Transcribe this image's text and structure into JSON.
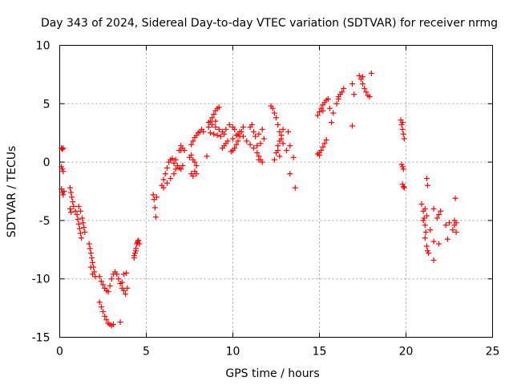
{
  "chart_data": {
    "type": "scatter",
    "title": "Day 343 of 2024, Sidereal Day-to-day VTEC variation (SDTVAR) for receiver nrmg",
    "xlabel": "GPS time / hours",
    "ylabel": "SDTVAR / TECUs",
    "xlim": [
      0,
      25
    ],
    "ylim": [
      -15,
      10
    ],
    "xticks": [
      0,
      5,
      10,
      15,
      20,
      25
    ],
    "yticks": [
      -15,
      -10,
      -5,
      0,
      5,
      10
    ],
    "grid": true,
    "marker": "+",
    "color": "#ff0000",
    "series": [
      {
        "name": "SDTVAR",
        "points": [
          [
            0.1,
            1.2
          ],
          [
            0.15,
            1.1
          ],
          [
            0.2,
            1.2
          ],
          [
            0.1,
            -0.4
          ],
          [
            0.15,
            -0.6
          ],
          [
            0.2,
            -0.8
          ],
          [
            0.1,
            -2.3
          ],
          [
            0.15,
            -2.6
          ],
          [
            0.2,
            -2.8
          ],
          [
            0.25,
            -2.5
          ],
          [
            0.6,
            -2.2
          ],
          [
            0.65,
            -2.6
          ],
          [
            0.7,
            -3.0
          ],
          [
            0.75,
            -3.4
          ],
          [
            0.6,
            -4.0
          ],
          [
            0.65,
            -4.3
          ],
          [
            0.8,
            -3.8
          ],
          [
            0.9,
            -4.2
          ],
          [
            1.0,
            -4.5
          ],
          [
            1.05,
            -4.9
          ],
          [
            1.1,
            -5.3
          ],
          [
            1.15,
            -5.7
          ],
          [
            1.2,
            -6.1
          ],
          [
            1.25,
            -6.5
          ],
          [
            1.1,
            -3.8
          ],
          [
            1.2,
            -4.2
          ],
          [
            1.3,
            -4.8
          ],
          [
            1.35,
            -5.2
          ],
          [
            1.4,
            -5.6
          ],
          [
            1.45,
            -6.0
          ],
          [
            1.7,
            -7.0
          ],
          [
            1.75,
            -7.4
          ],
          [
            1.8,
            -7.8
          ],
          [
            1.85,
            -8.2
          ],
          [
            1.9,
            -8.6
          ],
          [
            1.95,
            -9.0
          ],
          [
            2.0,
            -9.4
          ],
          [
            2.05,
            -9.8
          ],
          [
            1.8,
            -9.0
          ],
          [
            1.9,
            -9.6
          ],
          [
            2.3,
            -12.0
          ],
          [
            2.4,
            -12.4
          ],
          [
            2.5,
            -12.8
          ],
          [
            2.6,
            -13.2
          ],
          [
            2.7,
            -13.5
          ],
          [
            2.8,
            -13.8
          ],
          [
            2.9,
            -13.9
          ],
          [
            3.0,
            -14.0
          ],
          [
            3.1,
            -13.9
          ],
          [
            3.5,
            -13.7
          ],
          [
            2.3,
            -9.8
          ],
          [
            2.4,
            -10.2
          ],
          [
            2.5,
            -10.5
          ],
          [
            2.6,
            -10.8
          ],
          [
            2.7,
            -11.0
          ],
          [
            2.8,
            -11.1
          ],
          [
            2.9,
            -10.6
          ],
          [
            3.0,
            -10.0
          ],
          [
            3.1,
            -9.6
          ],
          [
            3.2,
            -9.4
          ],
          [
            3.3,
            -9.6
          ],
          [
            3.4,
            -10.0
          ],
          [
            3.5,
            -10.4
          ],
          [
            3.6,
            -10.8
          ],
          [
            3.7,
            -11.0
          ],
          [
            3.8,
            -11.3
          ],
          [
            3.9,
            -10.8
          ],
          [
            3.7,
            -9.6
          ],
          [
            3.85,
            -9.5
          ],
          [
            3.6,
            -10.3
          ],
          [
            4.3,
            -8.2
          ],
          [
            4.35,
            -7.8
          ],
          [
            4.4,
            -7.4
          ],
          [
            4.45,
            -7.0
          ],
          [
            4.5,
            -6.8
          ],
          [
            4.55,
            -6.7
          ],
          [
            4.6,
            -7.0
          ],
          [
            4.4,
            -7.6
          ],
          [
            4.5,
            -6.9
          ],
          [
            4.3,
            -8.0
          ],
          [
            5.4,
            -2.8
          ],
          [
            5.45,
            -3.2
          ],
          [
            5.5,
            -3.9
          ],
          [
            5.55,
            -4.7
          ],
          [
            5.6,
            -3.0
          ],
          [
            5.9,
            -2.0
          ],
          [
            6.0,
            -1.5
          ],
          [
            6.1,
            -1.0
          ],
          [
            6.2,
            -0.5
          ],
          [
            6.3,
            0.0
          ],
          [
            6.4,
            0.2
          ],
          [
            6.5,
            0.3
          ],
          [
            6.0,
            -2.2
          ],
          [
            6.2,
            -1.8
          ],
          [
            6.4,
            -1.4
          ],
          [
            6.6,
            -1.0
          ],
          [
            6.7,
            -0.6
          ],
          [
            6.8,
            -0.3
          ],
          [
            6.9,
            -0.5
          ],
          [
            7.0,
            -0.6
          ],
          [
            7.1,
            -0.3
          ],
          [
            6.6,
            -0.1
          ],
          [
            6.7,
            0.2
          ],
          [
            6.9,
            1.0
          ],
          [
            7.0,
            1.4
          ],
          [
            7.1,
            1.2
          ],
          [
            7.2,
            1.0
          ],
          [
            7.0,
            1.0
          ],
          [
            7.5,
            0.4
          ],
          [
            7.6,
            0.6
          ],
          [
            7.7,
            0.2
          ],
          [
            7.8,
            0.0
          ],
          [
            7.9,
            -0.3
          ],
          [
            7.6,
            -1.0
          ],
          [
            7.7,
            -1.2
          ],
          [
            7.8,
            -0.8
          ],
          [
            7.9,
            -1.0
          ],
          [
            7.6,
            1.5
          ],
          [
            7.7,
            1.8
          ],
          [
            7.8,
            2.1
          ],
          [
            7.9,
            2.3
          ],
          [
            8.0,
            2.5
          ],
          [
            8.1,
            2.6
          ],
          [
            8.2,
            2.8
          ],
          [
            8.3,
            2.6
          ],
          [
            8.5,
            0.5
          ],
          [
            8.6,
            3.0
          ],
          [
            8.7,
            3.5
          ],
          [
            8.8,
            3.8
          ],
          [
            8.9,
            4.1
          ],
          [
            9.0,
            4.4
          ],
          [
            9.1,
            4.6
          ],
          [
            9.2,
            4.7
          ],
          [
            9.0,
            3.5
          ],
          [
            8.6,
            3.4
          ],
          [
            8.8,
            3.2
          ],
          [
            9.0,
            3.0
          ],
          [
            9.2,
            2.8
          ],
          [
            9.4,
            2.6
          ],
          [
            9.6,
            2.8
          ],
          [
            9.8,
            3.2
          ],
          [
            8.7,
            2.5
          ],
          [
            8.9,
            2.4
          ],
          [
            9.1,
            2.3
          ],
          [
            9.3,
            2.2
          ],
          [
            9.5,
            2.4
          ],
          [
            9.5,
            1.4
          ],
          [
            9.6,
            1.6
          ],
          [
            9.7,
            1.8
          ],
          [
            9.4,
            1.2
          ],
          [
            9.9,
            0.9
          ],
          [
            10.0,
            1.0
          ],
          [
            10.1,
            1.2
          ],
          [
            10.2,
            1.5
          ],
          [
            10.3,
            1.8
          ],
          [
            10.4,
            2.2
          ],
          [
            10.5,
            2.6
          ],
          [
            10.6,
            3.0
          ],
          [
            10.0,
            2.0
          ],
          [
            10.2,
            2.3
          ],
          [
            10.4,
            2.6
          ],
          [
            10.0,
            3.0
          ],
          [
            10.1,
            2.8
          ],
          [
            10.3,
            2.4
          ],
          [
            10.6,
            2.2
          ],
          [
            10.8,
            1.8
          ],
          [
            11.0,
            1.5
          ],
          [
            11.2,
            1.2
          ],
          [
            11.4,
            1.4
          ],
          [
            11.6,
            1.6
          ],
          [
            11.8,
            2.0
          ],
          [
            11.0,
            3.0
          ],
          [
            11.1,
            3.2
          ],
          [
            11.2,
            2.6
          ],
          [
            11.3,
            2.2
          ],
          [
            11.5,
            2.4
          ],
          [
            11.7,
            2.8
          ],
          [
            11.4,
            0.8
          ],
          [
            11.5,
            0.5
          ],
          [
            11.6,
            0.2
          ],
          [
            11.7,
            0.0
          ],
          [
            11.5,
            0.2
          ],
          [
            12.2,
            4.8
          ],
          [
            12.3,
            4.6
          ],
          [
            12.4,
            4.2
          ],
          [
            12.5,
            3.8
          ],
          [
            12.6,
            3.2
          ],
          [
            12.7,
            2.6
          ],
          [
            12.8,
            2.0
          ],
          [
            12.9,
            1.6
          ],
          [
            12.6,
            1.0
          ],
          [
            12.7,
            0.5
          ],
          [
            12.5,
            0.8
          ],
          [
            12.6,
            1.4
          ],
          [
            12.7,
            1.8
          ],
          [
            12.8,
            2.3
          ],
          [
            12.9,
            2.8
          ],
          [
            12.4,
            0.2
          ],
          [
            13.2,
            2.6
          ],
          [
            13.3,
            1.4
          ],
          [
            13.1,
            1.0
          ],
          [
            13.3,
            -1.0
          ],
          [
            13.5,
            0.4
          ],
          [
            13.6,
            -2.2
          ],
          [
            14.9,
            0.7
          ],
          [
            15.0,
            0.8
          ],
          [
            15.1,
            1.0
          ],
          [
            15.2,
            1.3
          ],
          [
            15.3,
            1.6
          ],
          [
            15.4,
            1.9
          ],
          [
            15.0,
            0.6
          ],
          [
            14.9,
            4.0
          ],
          [
            15.0,
            4.3
          ],
          [
            15.1,
            4.6
          ],
          [
            15.2,
            4.9
          ],
          [
            15.3,
            5.1
          ],
          [
            15.4,
            5.3
          ],
          [
            15.5,
            5.4
          ],
          [
            15.2,
            4.4
          ],
          [
            15.6,
            4.6
          ],
          [
            15.8,
            4.2
          ],
          [
            15.7,
            3.4
          ],
          [
            16.0,
            5.0
          ],
          [
            16.1,
            5.4
          ],
          [
            16.2,
            5.8
          ],
          [
            16.3,
            6.0
          ],
          [
            16.4,
            6.3
          ],
          [
            16.1,
            5.6
          ],
          [
            16.9,
            6.7
          ],
          [
            17.0,
            5.8
          ],
          [
            16.9,
            3.1
          ],
          [
            17.3,
            7.4
          ],
          [
            17.4,
            7.1
          ],
          [
            17.5,
            6.7
          ],
          [
            17.6,
            6.3
          ],
          [
            17.7,
            6.0
          ],
          [
            17.8,
            5.7
          ],
          [
            17.9,
            5.6
          ],
          [
            18.0,
            7.6
          ],
          [
            17.5,
            7.3
          ],
          [
            19.7,
            3.6
          ],
          [
            19.75,
            3.2
          ],
          [
            19.8,
            2.8
          ],
          [
            19.85,
            2.4
          ],
          [
            19.9,
            2.0
          ],
          [
            19.8,
            3.4
          ],
          [
            19.75,
            -0.2
          ],
          [
            19.8,
            -0.4
          ],
          [
            19.85,
            -0.6
          ],
          [
            19.8,
            -1.9
          ],
          [
            19.85,
            -2.1
          ],
          [
            19.9,
            -2.2
          ],
          [
            20.9,
            -3.6
          ],
          [
            21.0,
            -4.2
          ],
          [
            21.05,
            -4.8
          ],
          [
            21.1,
            -5.4
          ],
          [
            21.15,
            -6.0
          ],
          [
            21.2,
            -7.2
          ],
          [
            21.25,
            -7.6
          ],
          [
            21.3,
            -7.8
          ],
          [
            21.0,
            -5.0
          ],
          [
            21.1,
            -6.5
          ],
          [
            21.2,
            -1.4
          ],
          [
            21.25,
            -2.0
          ],
          [
            21.1,
            -4.0
          ],
          [
            21.2,
            -4.6
          ],
          [
            21.4,
            -5.8
          ],
          [
            21.6,
            -4.0
          ],
          [
            21.8,
            -4.8
          ],
          [
            21.6,
            -6.8
          ],
          [
            21.9,
            -7.0
          ],
          [
            21.6,
            -8.4
          ],
          [
            21.9,
            -4.5
          ],
          [
            22.0,
            -4.2
          ],
          [
            22.3,
            -5.4
          ],
          [
            22.4,
            -6.6
          ],
          [
            22.5,
            -5.2
          ],
          [
            22.7,
            -5.8
          ],
          [
            22.8,
            -5.4
          ],
          [
            22.9,
            -6.0
          ],
          [
            22.8,
            -5.0
          ],
          [
            22.85,
            -3.1
          ],
          [
            22.9,
            -5.2
          ]
        ]
      }
    ]
  }
}
